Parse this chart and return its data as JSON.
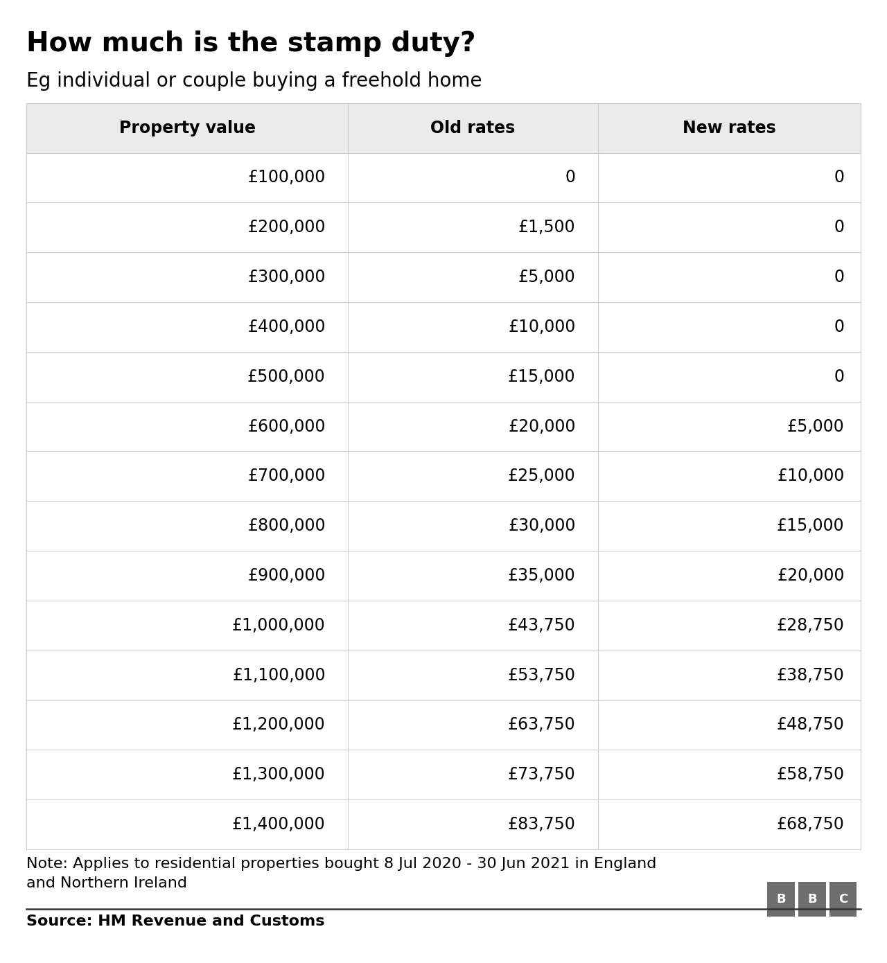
{
  "title": "How much is the stamp duty?",
  "subtitle": "Eg individual or couple buying a freehold home",
  "columns": [
    "Property value",
    "Old rates",
    "New rates"
  ],
  "rows": [
    [
      "£100,000",
      "0",
      "0"
    ],
    [
      "£200,000",
      "£1,500",
      "0"
    ],
    [
      "£300,000",
      "£5,000",
      "0"
    ],
    [
      "£400,000",
      "£10,000",
      "0"
    ],
    [
      "£500,000",
      "£15,000",
      "0"
    ],
    [
      "£600,000",
      "£20,000",
      "£5,000"
    ],
    [
      "£700,000",
      "£25,000",
      "£10,000"
    ],
    [
      "£800,000",
      "£30,000",
      "£15,000"
    ],
    [
      "£900,000",
      "£35,000",
      "£20,000"
    ],
    [
      "£1,000,000",
      "£43,750",
      "£28,750"
    ],
    [
      "£1,100,000",
      "£53,750",
      "£38,750"
    ],
    [
      "£1,200,000",
      "£63,750",
      "£48,750"
    ],
    [
      "£1,300,000",
      "£73,750",
      "£58,750"
    ],
    [
      "£1,400,000",
      "£83,750",
      "£68,750"
    ]
  ],
  "note": "Note: Applies to residential properties bought 8 Jul 2020 - 30 Jun 2021 in England\nand Northern Ireland",
  "source": "Source: HM Revenue and Customs",
  "header_bg": "#ebebeb",
  "header_text_color": "#000000",
  "row_text_color": "#000000",
  "line_color": "#cccccc",
  "separator_color": "#333333",
  "title_fontsize": 28,
  "subtitle_fontsize": 20,
  "header_fontsize": 17,
  "cell_fontsize": 17,
  "note_fontsize": 16,
  "source_fontsize": 16,
  "fig_width": 12.8,
  "fig_height": 13.9,
  "background_color": "#ffffff"
}
